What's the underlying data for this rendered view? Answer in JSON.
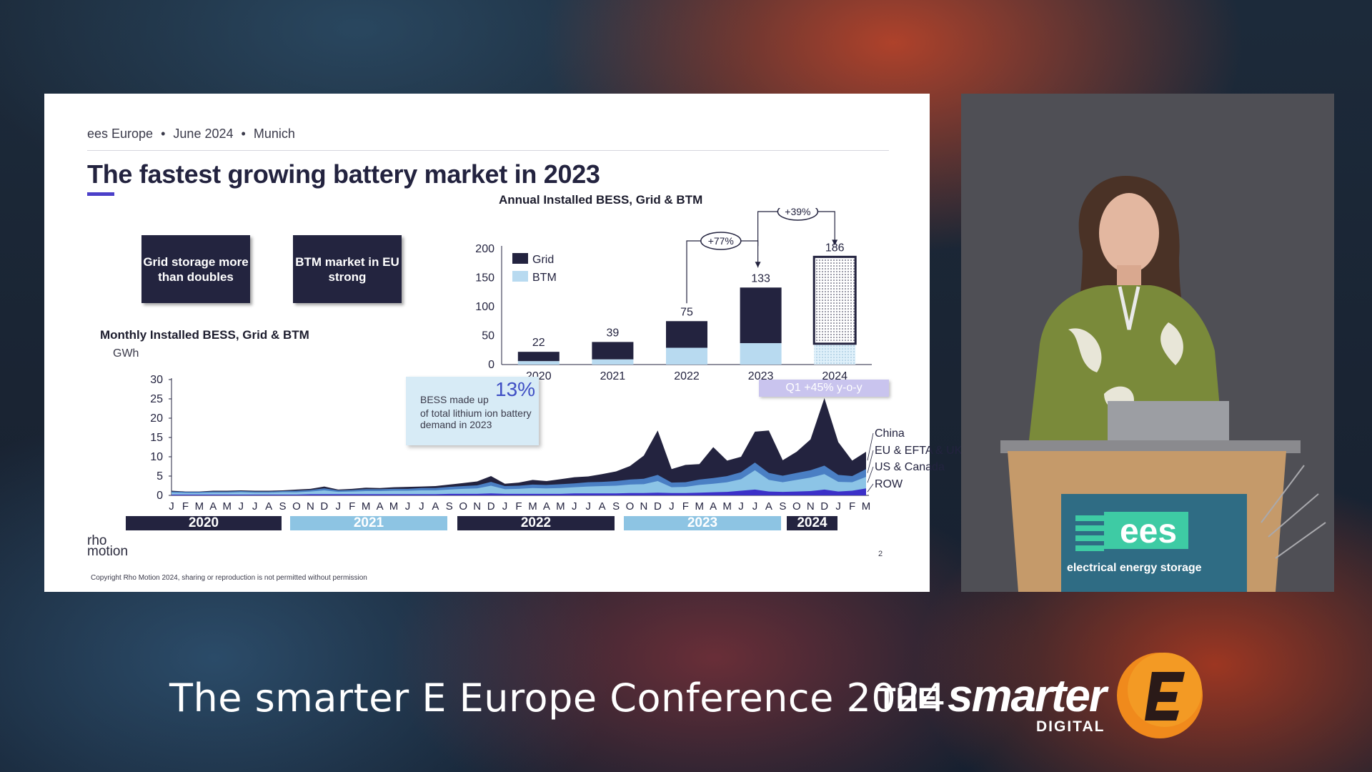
{
  "slide": {
    "header": {
      "event": "ees Europe",
      "date": "June 2024",
      "city": "Munich",
      "separator": "•"
    },
    "title": "The fastest growing battery market in 2023",
    "callouts": {
      "grid": "Grid storage more than doubles",
      "btm": "BTM market in EU strong"
    },
    "monthly_title": "Monthly Installed BESS, Grid & BTM",
    "monthly_unit": "GWh",
    "annual_title": "Annual Installed BESS, Grid & BTM",
    "bess_note": {
      "prefix": "BESS made up",
      "highlight": "13%",
      "rest": "of total lithium ion battery demand in 2023"
    },
    "q1_badge": "Q1 +45% y-o-y",
    "year_bars": [
      "2020",
      "2021",
      "2022",
      "2023",
      "2024"
    ],
    "logo_top": "rho",
    "logo_bottom": "motion",
    "page_number": "2",
    "copyright": "Copyright Rho Motion 2024, sharing or reproduction is not permitted without permission"
  },
  "conference_title": "The smarter E Europe Conference 2024",
  "brand": {
    "the": "THE",
    "smarter": "smarter",
    "digital": "DIGITAL",
    "badge_letter": "E"
  },
  "podium": {
    "logo": "ees",
    "tagline": "electrical energy storage"
  },
  "colors": {
    "grid": "#23233f",
    "btm": "#b8daf0",
    "accent": "#4b3fc9",
    "us_canada": "#8cc4e6",
    "row": "#3b30c8"
  },
  "chart_data": [
    {
      "type": "bar",
      "title": "Annual Installed BESS, Grid & BTM",
      "categories": [
        "2020",
        "2021",
        "2022",
        "2023",
        "2024"
      ],
      "series": [
        {
          "name": "Grid",
          "values": [
            16,
            30,
            46,
            96,
            150
          ]
        },
        {
          "name": "BTM",
          "values": [
            6,
            9,
            29,
            37,
            36
          ]
        }
      ],
      "totals": [
        22,
        39,
        75,
        133,
        186
      ],
      "ylim": [
        0,
        200
      ],
      "yticks": [
        0,
        50,
        100,
        150,
        200
      ],
      "legend": "top-left",
      "annotations": [
        "+77%",
        "+39%"
      ],
      "forecast_category": "2024"
    },
    {
      "type": "area",
      "title": "Monthly Installed BESS, Grid & BTM",
      "ylabel": "GWh",
      "ylim": [
        0,
        30
      ],
      "yticks": [
        0,
        5,
        10,
        15,
        20,
        25,
        30
      ],
      "x": [
        "J",
        "F",
        "M",
        "A",
        "M",
        "J",
        "J",
        "A",
        "S",
        "O",
        "N",
        "D",
        "J",
        "F",
        "M",
        "A",
        "M",
        "J",
        "J",
        "A",
        "S",
        "O",
        "N",
        "D",
        "J",
        "F",
        "M",
        "A",
        "M",
        "J",
        "J",
        "A",
        "S",
        "O",
        "N",
        "D",
        "J",
        "F",
        "M",
        "A",
        "M",
        "J",
        "J",
        "A",
        "S",
        "O",
        "N",
        "D",
        "J",
        "F",
        "M"
      ],
      "series": [
        {
          "name": "ROW",
          "values": [
            0.2,
            0.2,
            0.2,
            0.2,
            0.2,
            0.2,
            0.2,
            0.2,
            0.2,
            0.2,
            0.3,
            0.3,
            0.3,
            0.3,
            0.3,
            0.3,
            0.3,
            0.3,
            0.3,
            0.3,
            0.4,
            0.4,
            0.4,
            0.5,
            0.4,
            0.4,
            0.4,
            0.4,
            0.4,
            0.5,
            0.5,
            0.5,
            0.5,
            0.6,
            0.6,
            0.7,
            0.6,
            0.6,
            0.7,
            0.8,
            0.9,
            1.2,
            1.5,
            1.0,
            0.9,
            1.0,
            1.1,
            1.5,
            1.0,
            1.2,
            1.8
          ]
        },
        {
          "name": "US & Canada",
          "values": [
            0.5,
            0.4,
            0.4,
            0.5,
            0.5,
            0.6,
            0.5,
            0.5,
            0.6,
            0.6,
            0.7,
            1.0,
            0.6,
            0.7,
            0.8,
            0.8,
            0.9,
            0.9,
            1.0,
            1.0,
            1.1,
            1.3,
            1.4,
            2.0,
            1.2,
            1.3,
            1.5,
            1.4,
            1.5,
            1.6,
            1.8,
            1.9,
            2.0,
            2.2,
            2.3,
            3.0,
            1.5,
            1.6,
            2.0,
            2.2,
            2.5,
            3.0,
            5.0,
            3.0,
            2.5,
            3.0,
            3.5,
            4.0,
            2.5,
            2.2,
            3.0
          ]
        },
        {
          "name": "EU & EFTA & UK",
          "values": [
            0.3,
            0.3,
            0.3,
            0.3,
            0.3,
            0.3,
            0.3,
            0.3,
            0.3,
            0.4,
            0.4,
            0.5,
            0.4,
            0.4,
            0.5,
            0.5,
            0.5,
            0.5,
            0.6,
            0.6,
            0.7,
            0.7,
            0.8,
            1.0,
            0.8,
            0.8,
            0.9,
            0.9,
            1.0,
            1.0,
            1.1,
            1.1,
            1.2,
            1.3,
            1.4,
            1.6,
            1.2,
            1.2,
            1.4,
            1.5,
            1.6,
            1.8,
            2.0,
            1.8,
            1.7,
            1.8,
            1.9,
            2.2,
            1.8,
            1.6,
            2.0
          ]
        },
        {
          "name": "China",
          "values": [
            0.2,
            0.1,
            0.1,
            0.2,
            0.2,
            0.2,
            0.2,
            0.2,
            0.2,
            0.3,
            0.3,
            0.5,
            0.2,
            0.3,
            0.4,
            0.3,
            0.4,
            0.5,
            0.4,
            0.5,
            0.6,
            0.8,
            1.0,
            1.5,
            0.6,
            0.8,
            1.2,
            1.0,
            1.3,
            1.6,
            1.5,
            2.0,
            2.5,
            3.5,
            6.0,
            11.5,
            3.5,
            4.5,
            4.0,
            8.0,
            4.0,
            4.0,
            8.0,
            11.0,
            4.0,
            5.5,
            8.0,
            17.5,
            8.5,
            4.0,
            4.5
          ]
        }
      ],
      "legend": "right",
      "year_bands": [
        "2020",
        "2021",
        "2022",
        "2023",
        "2024"
      ]
    }
  ]
}
